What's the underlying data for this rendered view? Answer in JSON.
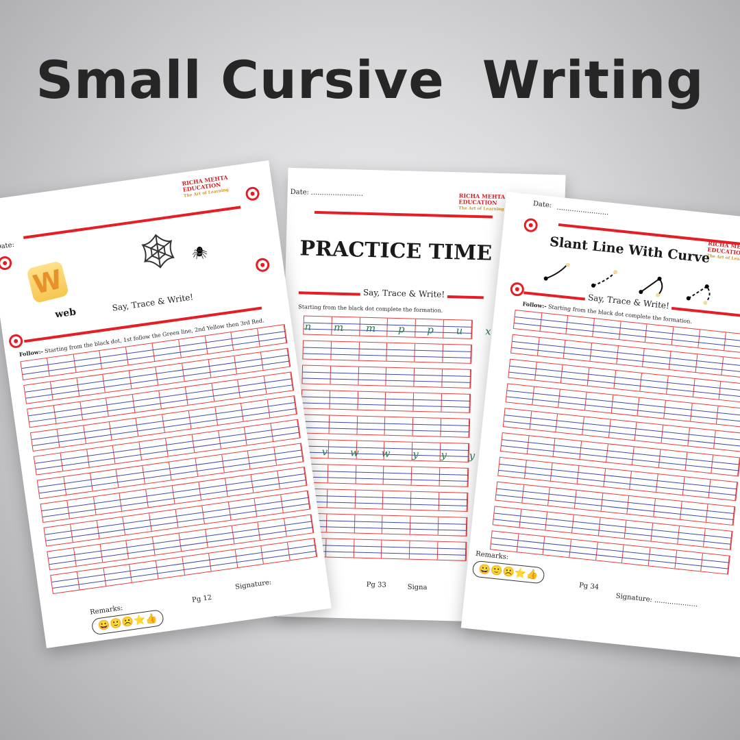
{
  "title": "Small Cursive  Writing",
  "brand": {
    "name_line1": "RICHA MEHTA",
    "name_line2": "EDUCATION",
    "tagline": "The Art of Learning"
  },
  "sheet_left": {
    "date_label": "Date:",
    "tile_letter": "W",
    "word": "web",
    "say": "Say, Trace & Write!",
    "instruction_bold": "Follow:-",
    "instruction": " Starting from the black dot, 1st follow the Green line, 2nd Yellow then 3rd Red.",
    "remarks_label": "Remarks:",
    "remarks_icons": "😀🙂☹️⭐👍",
    "page": "Pg 12",
    "signature": "Signature:"
  },
  "sheet_middle": {
    "date_label": "Date:",
    "date_dots": "........................",
    "heading": "PRACTICE TIME",
    "say": "Say, Trace & Write!",
    "instruction": "Starting from the black dot complete the formation.",
    "row1_letters": "n m m p p u x",
    "row2_letters": "v w w y y y",
    "page": "Pg 33",
    "signature": "Signa"
  },
  "sheet_right": {
    "date_label": "Date:",
    "date_dots": "........................",
    "heading": "Slant Line With Curve",
    "say": "Say, Trace & Write!",
    "instruction_bold": "Follow:-",
    "instruction": " Starting from the black dot complete the formation.",
    "remarks_label": "Remarks:",
    "remarks_icons": "😀🙂☹️⭐👍",
    "page": "Pg 34",
    "signature": "Signature: ...................."
  },
  "colors": {
    "accent_red": "#e51e25",
    "guide_blue": "#3c4aa8",
    "title": "#262626"
  }
}
